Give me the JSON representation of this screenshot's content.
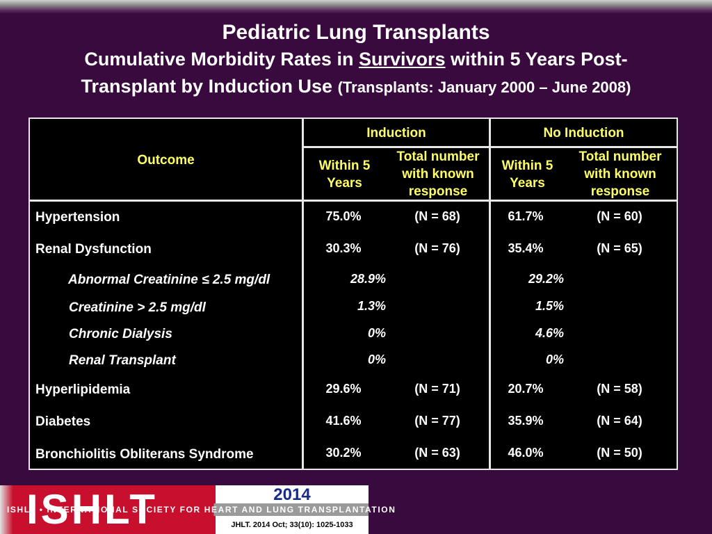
{
  "title": {
    "line1": "Pediatric Lung Transplants",
    "line2_pre": "Cumulative Morbidity Rates in ",
    "line2_underlined": "Survivors",
    "line2_post": " within 5 Years Post-",
    "line3_main": "Transplant by Induction Use ",
    "line3_paren": "(Transplants: January 2000 – June 2008)"
  },
  "table": {
    "outcome_header": "Outcome",
    "induction_header": "Induction",
    "no_induction_header": "No Induction",
    "within_header": "Within 5 Years",
    "total_header": "Total number with known response",
    "rows": [
      {
        "label": "Hypertension",
        "ind_pct": "75.0%",
        "ind_n": "(N = 68)",
        "no_pct": "61.7%",
        "no_n": "(N = 60)"
      },
      {
        "label": "Renal Dysfunction",
        "ind_pct": "30.3%",
        "ind_n": "(N = 76)",
        "no_pct": "35.4%",
        "no_n": "(N = 65)"
      },
      {
        "label": "Abnormal Creatinine ≤ 2.5 mg/dl",
        "ind_pct": "28.9%",
        "no_pct": "29.2%"
      },
      {
        "label": "Creatinine > 2.5 mg/dl",
        "ind_pct": "1.3%",
        "no_pct": "1.5%"
      },
      {
        "label": "Chronic Dialysis",
        "ind_pct": "0%",
        "no_pct": "4.6%"
      },
      {
        "label": "Renal Transplant",
        "ind_pct": "0%",
        "no_pct": "0%"
      },
      {
        "label": "Hyperlipidemia",
        "ind_pct": "29.6%",
        "ind_n": "(N = 71)",
        "no_pct": "20.7%",
        "no_n": "(N = 58)"
      },
      {
        "label": "Diabetes",
        "ind_pct": "41.6%",
        "ind_n": "(N = 77)",
        "no_pct": "35.9%",
        "no_n": "(N = 64)"
      },
      {
        "label": "Bronchiolitis Obliterans Syndrome",
        "ind_pct": "30.2%",
        "ind_n": "(N = 63)",
        "no_pct": "46.0%",
        "no_n": "(N = 50)"
      }
    ]
  },
  "footer": {
    "logo_text": "ISHLT",
    "tagline": "ISHLT • INTERNATIONAL SOCIETY FOR HEART AND LUNG TRANSPLANTATION",
    "year": "2014",
    "citation": "JHLT. 2014 Oct; 33(10): 1025-1033"
  },
  "colors": {
    "background": "#380a3e",
    "header_text": "#ffff66",
    "logo_red": "#c8102e",
    "year_blue": "#1a2a8c"
  }
}
